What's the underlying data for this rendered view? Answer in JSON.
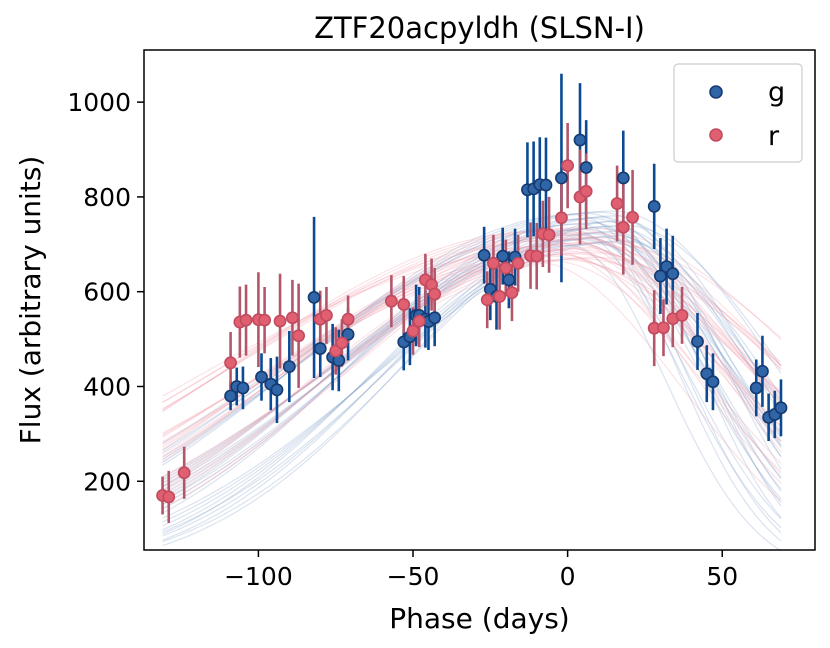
{
  "chart_data": {
    "type": "scatter",
    "title": "ZTF20acpyldh (SLSN-I)",
    "xlabel": "Phase (days)",
    "ylabel": "Flux (arbitrary units)",
    "xlim": [
      -137,
      80
    ],
    "ylim": [
      55,
      1110
    ],
    "xticks": [
      -100,
      -50,
      0,
      50
    ],
    "xtick_labels": [
      "−100",
      "−50",
      "0",
      "50"
    ],
    "yticks": [
      200,
      400,
      600,
      800,
      1000
    ],
    "ytick_labels": [
      "200",
      "400",
      "600",
      "800",
      "1000"
    ],
    "legend_position": "top-right",
    "colors": {
      "g_face": "#3066a8",
      "g_edge": "#163a70",
      "g_err": "#0b4a93",
      "r_face": "#e06072",
      "r_edge": "#c24a5e",
      "r_err": "#b4566a",
      "g_model": "#7b9cc7",
      "r_model": "#ef9aaa"
    },
    "series": [
      {
        "name": "g",
        "points": [
          [
            -109,
            380,
            30
          ],
          [
            -107,
            400,
            40
          ],
          [
            -105,
            397,
            45
          ],
          [
            -99,
            420,
            50
          ],
          [
            -96,
            405,
            55
          ],
          [
            -94,
            393,
            70
          ],
          [
            -90,
            442,
            75
          ],
          [
            -82,
            588,
            170
          ],
          [
            -80,
            480,
            60
          ],
          [
            -76,
            462,
            70
          ],
          [
            -74,
            455,
            65
          ],
          [
            -71,
            510,
            55
          ],
          [
            -53,
            494,
            60
          ],
          [
            -51,
            505,
            60
          ],
          [
            -49,
            550,
            65
          ],
          [
            -48,
            550,
            60
          ],
          [
            -46,
            542,
            60
          ],
          [
            -45,
            537,
            60
          ],
          [
            -43,
            545,
            60
          ],
          [
            -27,
            677,
            60
          ],
          [
            -25,
            605,
            65
          ],
          [
            -23,
            590,
            70
          ],
          [
            -21,
            675,
            60
          ],
          [
            -19,
            625,
            60
          ],
          [
            -17,
            673,
            60
          ],
          [
            -13,
            815,
            100
          ],
          [
            -11,
            817,
            100
          ],
          [
            -9,
            826,
            100
          ],
          [
            -7,
            825,
            100
          ],
          [
            -2,
            840,
            220
          ],
          [
            4,
            920,
            120
          ],
          [
            6,
            862,
            100
          ],
          [
            18,
            840,
            100
          ],
          [
            28,
            780,
            90
          ],
          [
            30,
            633,
            80
          ],
          [
            32,
            653,
            80
          ],
          [
            34,
            638,
            80
          ],
          [
            42,
            495,
            60
          ],
          [
            45,
            427,
            60
          ],
          [
            47,
            410,
            60
          ],
          [
            61,
            397,
            60
          ],
          [
            63,
            432,
            75
          ],
          [
            65,
            335,
            50
          ],
          [
            67,
            341,
            50
          ],
          [
            69,
            355,
            60
          ]
        ]
      },
      {
        "name": "r",
        "points": [
          [
            -131,
            170,
            40
          ],
          [
            -129,
            167,
            55
          ],
          [
            -124,
            218,
            55
          ],
          [
            -109,
            450,
            65
          ],
          [
            -106,
            536,
            75
          ],
          [
            -104,
            540,
            75
          ],
          [
            -100,
            541,
            100
          ],
          [
            -98,
            540,
            70
          ],
          [
            -93,
            538,
            100
          ],
          [
            -89,
            545,
            80
          ],
          [
            -87,
            507,
            110
          ],
          [
            -80,
            542,
            60
          ],
          [
            -78,
            550,
            60
          ],
          [
            -75,
            475,
            50
          ],
          [
            -73,
            492,
            50
          ],
          [
            -71,
            542,
            50
          ],
          [
            -57,
            580,
            55
          ],
          [
            -53,
            573,
            60
          ],
          [
            -50,
            517,
            50
          ],
          [
            -48,
            538,
            55
          ],
          [
            -46,
            625,
            55
          ],
          [
            -44,
            615,
            55
          ],
          [
            -43,
            595,
            55
          ],
          [
            -26,
            583,
            60
          ],
          [
            -24,
            660,
            60
          ],
          [
            -22,
            590,
            70
          ],
          [
            -20,
            650,
            60
          ],
          [
            -18,
            598,
            60
          ],
          [
            -16,
            660,
            60
          ],
          [
            -12,
            676,
            70
          ],
          [
            -10,
            675,
            70
          ],
          [
            -8,
            722,
            70
          ],
          [
            -6,
            720,
            80
          ],
          [
            -2,
            756,
            80
          ],
          [
            0,
            866,
            90
          ],
          [
            4,
            800,
            100
          ],
          [
            6,
            812,
            80
          ],
          [
            16,
            786,
            80
          ],
          [
            18,
            736,
            100
          ],
          [
            21,
            757,
            100
          ],
          [
            28,
            523,
            80
          ],
          [
            31,
            524,
            60
          ],
          [
            34,
            543,
            60
          ],
          [
            37,
            550,
            60
          ]
        ]
      }
    ]
  }
}
